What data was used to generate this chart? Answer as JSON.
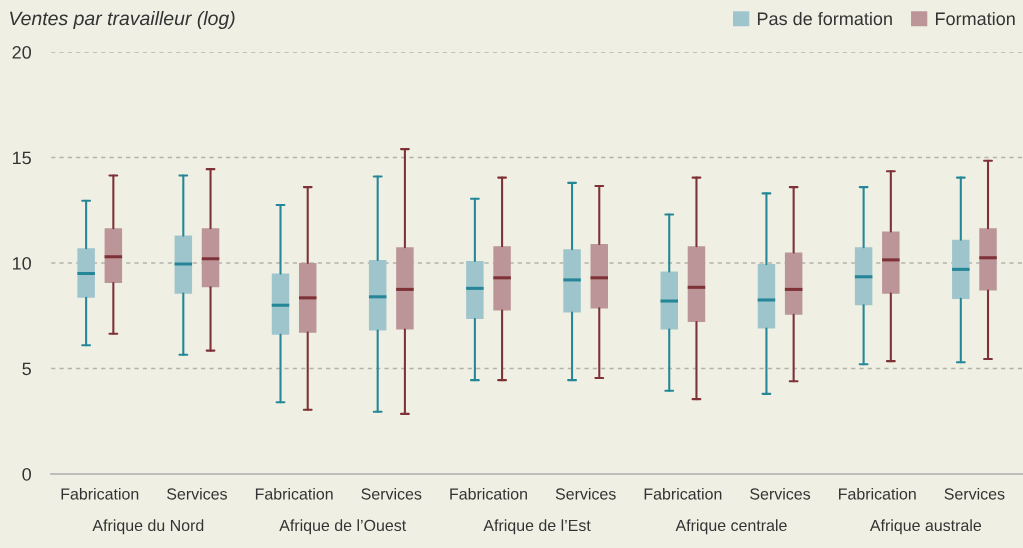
{
  "chart_data": {
    "type": "box",
    "ylabel": "Ventes par travailleur (log)",
    "categories": [
      "Fabrication",
      "Services",
      "Fabrication",
      "Services",
      "Fabrication",
      "Services",
      "Fabrication",
      "Services",
      "Fabrication",
      "Services"
    ],
    "annotations": [
      "Afrique du Nord",
      "Afrique de l’Ouest",
      "Afrique de l’Est",
      "Afrique centrale",
      "Afrique australe"
    ],
    "series": [
      {
        "name": "Pas de formation",
        "color": "#9fc5cc",
        "boxes": [
          {
            "low": 6.1,
            "q1": 8.35,
            "median": 9.5,
            "q3": 10.7,
            "high": 12.95
          },
          {
            "low": 5.65,
            "q1": 8.55,
            "median": 9.95,
            "q3": 11.3,
            "high": 14.15
          },
          {
            "low": 3.4,
            "q1": 6.6,
            "median": 8.0,
            "q3": 9.5,
            "high": 12.75
          },
          {
            "low": 2.95,
            "q1": 6.8,
            "median": 8.4,
            "q3": 10.15,
            "high": 14.1
          },
          {
            "low": 4.45,
            "q1": 7.35,
            "median": 8.8,
            "q3": 10.1,
            "high": 13.05
          },
          {
            "low": 4.45,
            "q1": 7.65,
            "median": 9.2,
            "q3": 10.65,
            "high": 13.8
          },
          {
            "low": 3.95,
            "q1": 6.85,
            "median": 8.2,
            "q3": 9.6,
            "high": 12.3
          },
          {
            "low": 3.8,
            "q1": 6.9,
            "median": 8.25,
            "q3": 9.95,
            "high": 13.3
          },
          {
            "low": 5.2,
            "q1": 8.0,
            "median": 9.35,
            "q3": 10.75,
            "high": 13.6
          },
          {
            "low": 5.3,
            "q1": 8.3,
            "median": 9.7,
            "q3": 11.1,
            "high": 14.05
          }
        ]
      },
      {
        "name": "Formation",
        "color": "#bb9598",
        "boxes": [
          {
            "low": 6.65,
            "q1": 9.05,
            "median": 10.3,
            "q3": 11.65,
            "high": 14.15
          },
          {
            "low": 5.85,
            "q1": 8.85,
            "median": 10.2,
            "q3": 11.65,
            "high": 14.45
          },
          {
            "low": 3.05,
            "q1": 6.7,
            "median": 8.35,
            "q3": 10.0,
            "high": 13.6
          },
          {
            "low": 2.85,
            "q1": 6.85,
            "median": 8.75,
            "q3": 10.75,
            "high": 15.4
          },
          {
            "low": 4.45,
            "q1": 7.75,
            "median": 9.3,
            "q3": 10.8,
            "high": 14.05
          },
          {
            "low": 4.55,
            "q1": 7.85,
            "median": 9.3,
            "q3": 10.9,
            "high": 13.65
          },
          {
            "low": 3.55,
            "q1": 7.2,
            "median": 8.85,
            "q3": 10.8,
            "high": 14.05
          },
          {
            "low": 4.4,
            "q1": 7.55,
            "median": 8.75,
            "q3": 10.5,
            "high": 13.6
          },
          {
            "low": 5.35,
            "q1": 8.55,
            "median": 10.15,
            "q3": 11.5,
            "high": 14.35
          },
          {
            "low": 5.45,
            "q1": 8.7,
            "median": 10.25,
            "q3": 11.65,
            "high": 14.85
          }
        ]
      }
    ],
    "ylim": [
      0,
      20
    ],
    "yticks": [
      0,
      5,
      10,
      15,
      20
    ],
    "grid": "y",
    "legend": "top right"
  }
}
